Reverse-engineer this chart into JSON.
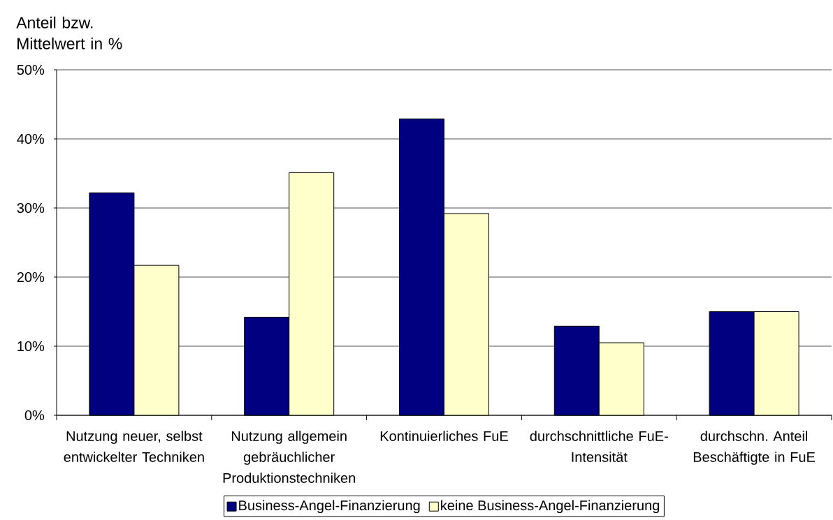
{
  "chart_data": {
    "type": "bar",
    "ylabel": "Anteil bzw. Mittelwert in %",
    "categories": [
      "Nutzung neuer, selbst entwickelter Techniken",
      "Nutzung allgemein gebräuchlicher Produktionstechniken",
      "Kontinuierliches FuE",
      "durchschnittliche FuE-Intensität",
      "durchschn. Anteil Beschäftigte in FuE"
    ],
    "series": [
      {
        "name": "Business-Angel-Finanzierung",
        "color": "#000080",
        "values": [
          32.2,
          14.2,
          42.9,
          12.9,
          15.0
        ]
      },
      {
        "name": "keine Business-Angel-Finanzierung",
        "color": "#ffffcc",
        "values": [
          21.7,
          35.1,
          29.2,
          10.5,
          15.0
        ]
      }
    ],
    "ylim": [
      0,
      50
    ],
    "yticks": [
      {
        "value": 0,
        "label": "0%"
      },
      {
        "value": 10,
        "label": "10%"
      },
      {
        "value": 20,
        "label": "20%"
      },
      {
        "value": 30,
        "label": "30%"
      },
      {
        "value": 40,
        "label": "40%"
      },
      {
        "value": 50,
        "label": "50%"
      }
    ],
    "grid": "y",
    "legend": "bottom"
  }
}
